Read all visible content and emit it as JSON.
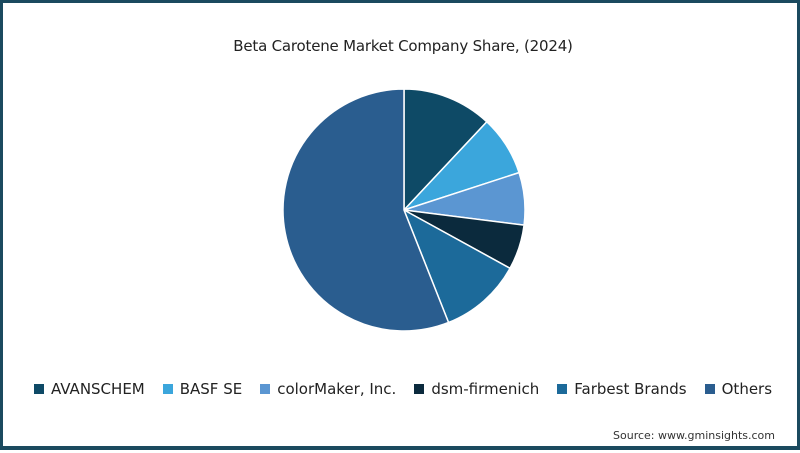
{
  "chart_data": {
    "type": "pie",
    "title": "Beta Carotene Market Company Share, (2024)",
    "categories": [
      "AVANSCHEM",
      "BASF SE",
      "colorMaker, Inc.",
      "dsm-firmenich",
      "Farbest Brands",
      "Others"
    ],
    "values": [
      12,
      8,
      7,
      6,
      11,
      56
    ],
    "unit": "%",
    "colors": [
      "#0e4a66",
      "#3ba6dc",
      "#5b96d2",
      "#0b2a3d",
      "#1c6a9a",
      "#2a5d8f"
    ],
    "start_angle_deg": 0,
    "direction": "clockwise",
    "legend_position": "bottom",
    "source": "Source: www.gminsights.com"
  },
  "header": {
    "title": "Beta Carotene Market Company Share, (2024)"
  },
  "legend": {
    "items": [
      {
        "label": "AVANSCHEM",
        "color": "#0e4a66"
      },
      {
        "label": "BASF SE",
        "color": "#3ba6dc"
      },
      {
        "label": "colorMaker, Inc.",
        "color": "#5b96d2"
      },
      {
        "label": "dsm-firmenich",
        "color": "#0b2a3d"
      },
      {
        "label": "Farbest Brands",
        "color": "#1c6a9a"
      },
      {
        "label": "Others",
        "color": "#2a5d8f"
      }
    ]
  },
  "footer": {
    "source": "Source: www.gminsights.com"
  },
  "theme": {
    "frame_color": "#1b4a5f"
  }
}
